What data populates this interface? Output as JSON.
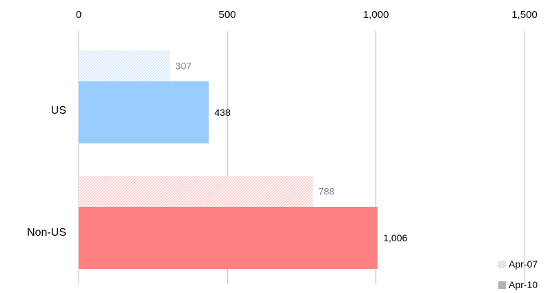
{
  "chart_data": {
    "type": "bar",
    "orientation": "horizontal",
    "categories": [
      "US",
      "Non-US"
    ],
    "series": [
      {
        "name": "Apr-07",
        "values": [
          307,
          788
        ],
        "style": "hatched"
      },
      {
        "name": "Apr-10",
        "values": [
          438,
          1006
        ],
        "style": "solid"
      }
    ],
    "colors": {
      "US": {
        "light": "#d5e9fc",
        "solid": "#99ccff"
      },
      "Non-US": {
        "light": "#ffcccc",
        "solid": "#ff8080"
      },
      "legend_light": "#d8d8d8",
      "legend_solid": "#b4b4b4",
      "grid": "#c0c0c0"
    },
    "axis": {
      "ticks": [
        0,
        500,
        1000,
        1500
      ],
      "tick_labels": [
        "0",
        "500",
        "1,000",
        "1,500"
      ],
      "xlim": [
        0,
        1500
      ],
      "position": "top"
    },
    "data_labels": {
      "US": [
        "307",
        "438"
      ],
      "Non-US": [
        "788",
        "1,006"
      ]
    },
    "grid": true,
    "legend_position": "bottom-right"
  }
}
